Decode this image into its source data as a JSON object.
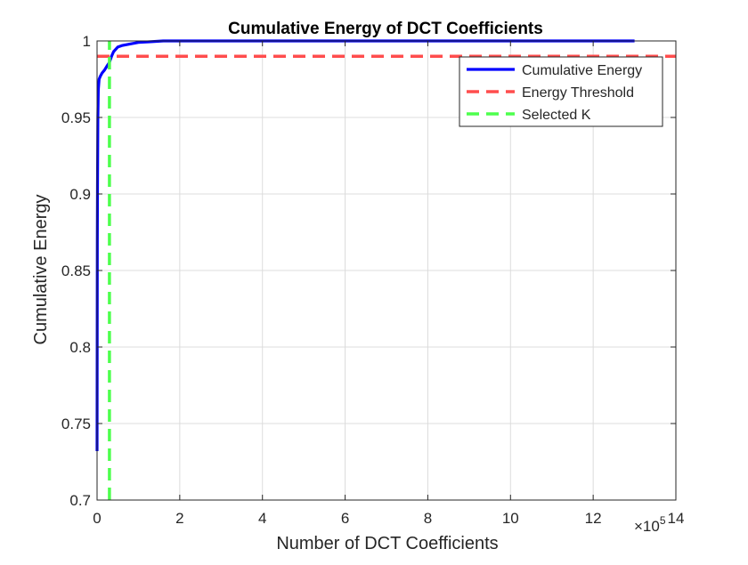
{
  "chart_data": {
    "type": "line",
    "title": "Cumulative Energy of DCT Coefficients",
    "xlabel": "Number of DCT Coefficients",
    "ylabel": "Cumulative Energy",
    "x_multiplier_base": "×10",
    "x_multiplier_exp": "5",
    "xlim": [
      0,
      14
    ],
    "ylim": [
      0.7,
      1.0
    ],
    "x_ticks": [
      0,
      2,
      4,
      6,
      8,
      10,
      12,
      14
    ],
    "x_tick_labels": [
      "0",
      "2",
      "4",
      "6",
      "8",
      "10",
      "12",
      "14"
    ],
    "y_ticks": [
      0.7,
      0.75,
      0.8,
      0.85,
      0.9,
      0.95,
      1.0
    ],
    "y_tick_labels": [
      "0.7",
      "0.75",
      "0.8",
      "0.85",
      "0.9",
      "0.95",
      "1"
    ],
    "grid": true,
    "legend_position": "top-right",
    "series": [
      {
        "name": "Cumulative Energy",
        "color": "#0000ff",
        "style": "solid",
        "x": [
          0.0,
          0.003,
          0.006,
          0.01,
          0.02,
          0.03,
          0.05,
          0.08,
          0.12,
          0.18,
          0.25,
          0.3,
          0.35,
          0.4,
          0.5,
          0.6,
          0.8,
          1.0,
          1.3,
          1.6,
          2.0,
          3.0,
          5.0,
          8.0,
          10.0,
          12.0,
          13.0
        ],
        "y": [
          0.732,
          0.78,
          0.87,
          0.905,
          0.95,
          0.968,
          0.975,
          0.977,
          0.979,
          0.981,
          0.984,
          0.986,
          0.99,
          0.993,
          0.996,
          0.997,
          0.998,
          0.999,
          0.9995,
          1.0,
          1.0,
          1.0,
          1.0,
          1.0,
          1.0,
          1.0,
          1.0
        ]
      },
      {
        "name": "Energy Threshold",
        "color": "#ff4d4d",
        "style": "dashed",
        "x": [
          0,
          14
        ],
        "y": [
          0.99,
          0.99
        ]
      },
      {
        "name": "Selected K",
        "color": "#4dff4d",
        "style": "dashed",
        "x": [
          0.3,
          0.3
        ],
        "y": [
          0.7,
          1.0
        ]
      }
    ]
  }
}
